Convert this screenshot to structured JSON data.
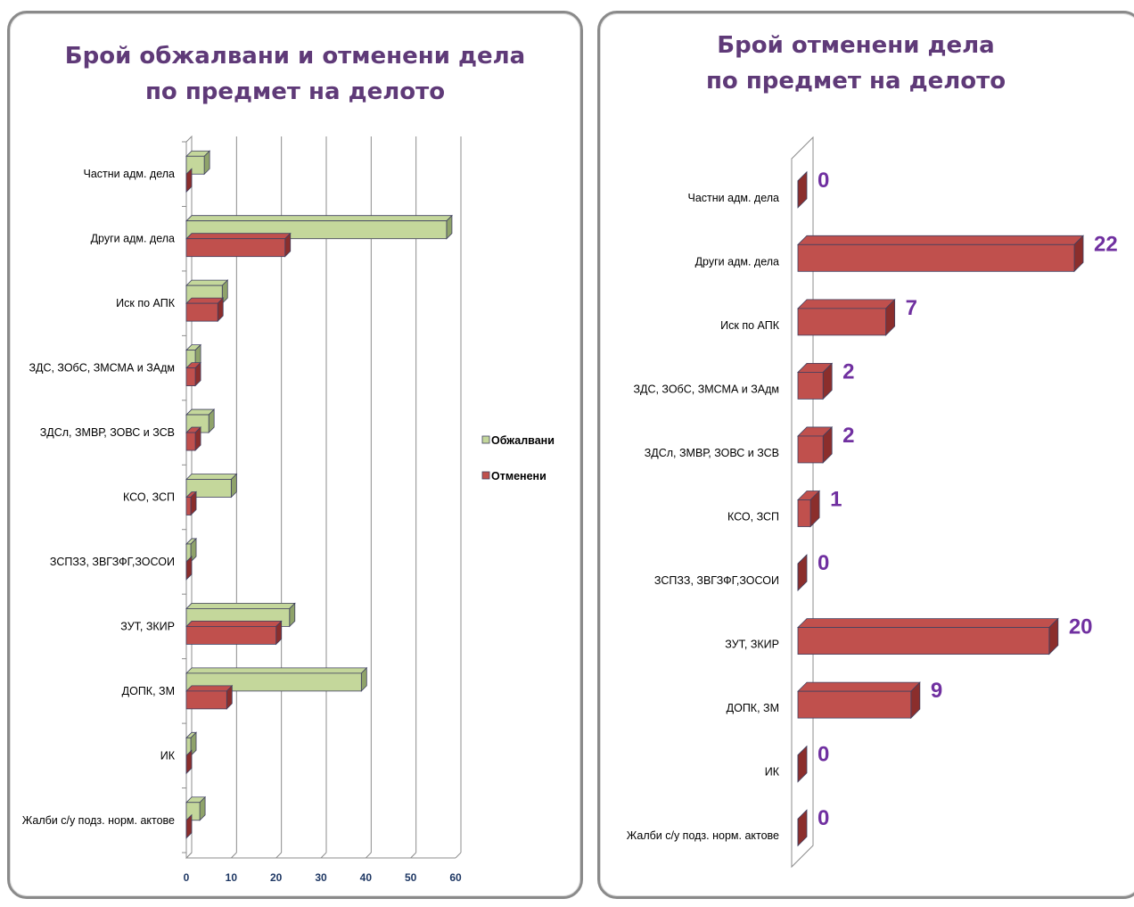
{
  "colors": {
    "appealed": "#c4d79b",
    "appealed_side": "#8fa36a",
    "annulled": "#c0504d",
    "annulled_side": "#8b2e2c",
    "edge": "#404060",
    "title": "#5f3a78",
    "value_label": "#7030a0",
    "axis_tick": "#1f3864"
  },
  "chart_data": [
    {
      "type": "bar",
      "orientation": "horizontal",
      "title_line1": "Брой обжалвани и отменени дела",
      "title_line2": "по предмет на делото",
      "categories": [
        "Частни адм. дела",
        "Други адм. дела",
        "Иск по АПК",
        "ЗДС, ЗОбС, ЗМСМА и ЗАдм",
        "ЗДСл, ЗМВР, ЗОВС и ЗСВ",
        "КСО, ЗСП",
        "ЗСПЗЗ, ЗВГЗФГ,ЗОСОИ",
        "ЗУТ, ЗКИР",
        "ДОПК, ЗМ",
        "ИК",
        "Жалби с/у подз. норм. актове"
      ],
      "series": [
        {
          "name": "Обжалвани",
          "values": [
            4,
            58,
            8,
            2,
            5,
            10,
            1,
            23,
            39,
            1,
            3
          ]
        },
        {
          "name": "Отменени",
          "values": [
            0,
            22,
            7,
            2,
            2,
            1,
            0,
            20,
            9,
            0,
            0
          ]
        }
      ],
      "xlim": [
        0,
        60
      ],
      "xticks": [
        "0",
        "10",
        "20",
        "30",
        "40",
        "50",
        "60"
      ],
      "grid": true,
      "legend_position": "right"
    },
    {
      "type": "bar",
      "orientation": "horizontal",
      "title_line1": "Брой отменени  дела",
      "title_line2": "по предмет на делото",
      "categories": [
        "Частни адм. дела",
        "Други адм. дела",
        "Иск по АПК",
        "ЗДС, ЗОбС, ЗМСМА и ЗАдм",
        "ЗДСл, ЗМВР, ЗОВС и ЗСВ",
        "КСО, ЗСП",
        "ЗСПЗЗ, ЗВГЗФГ,ЗОСОИ",
        "ЗУТ, ЗКИР",
        "ДОПК, ЗМ",
        "ИК",
        "Жалби с/у подз. норм. актове"
      ],
      "values": [
        0,
        22,
        7,
        2,
        2,
        1,
        0,
        20,
        9,
        0,
        0
      ],
      "data_labels": [
        "0",
        "22",
        "7",
        "2",
        "2",
        "1",
        "0",
        "20",
        "9",
        "0",
        "0"
      ],
      "grid": false,
      "legend_position": "none"
    }
  ]
}
